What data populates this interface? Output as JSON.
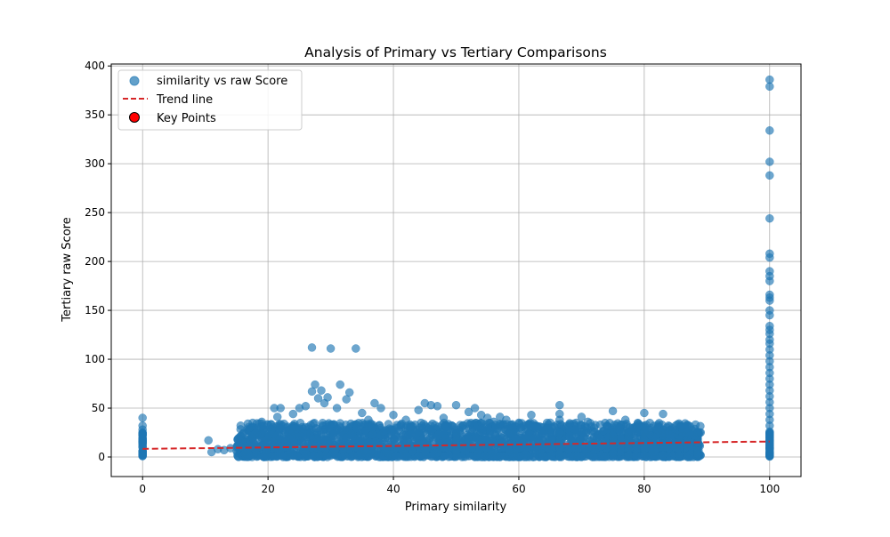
{
  "chart_data": {
    "type": "scatter",
    "title": "Analysis of Primary vs Tertiary Comparisons",
    "xlabel": "Primary similarity",
    "ylabel": "Tertiary raw Score",
    "xlim": [
      -5,
      105
    ],
    "ylim": [
      -20,
      402
    ],
    "xticks": [
      0,
      20,
      40,
      60,
      80,
      100
    ],
    "yticks": [
      0,
      50,
      100,
      150,
      200,
      250,
      300,
      350,
      400
    ],
    "grid": true,
    "legend_position": "top-left",
    "legend": [
      {
        "label": "similarity vs raw Score",
        "kind": "point",
        "color": "#1f77b4"
      },
      {
        "label": "Trend line",
        "kind": "dashed-line",
        "color": "#d62728"
      },
      {
        "label": "Key Points",
        "kind": "point",
        "color": "#ff0000"
      }
    ],
    "series": [
      {
        "name": "similarity vs raw Score",
        "kind": "scatter",
        "color": "#1f77b4",
        "points": [
          [
            0,
            40
          ],
          [
            0,
            32
          ],
          [
            0,
            28
          ],
          [
            0,
            22
          ],
          [
            0,
            18
          ],
          [
            0,
            14
          ],
          [
            0,
            10
          ],
          [
            0,
            6
          ],
          [
            0,
            2
          ],
          [
            10.5,
            17
          ],
          [
            11,
            5
          ],
          [
            12,
            8
          ],
          [
            13,
            7
          ],
          [
            14,
            9
          ],
          [
            15,
            6
          ],
          [
            15.5,
            10
          ],
          [
            16,
            24
          ],
          [
            17,
            12
          ],
          [
            18,
            24
          ],
          [
            19,
            36
          ],
          [
            20,
            15
          ],
          [
            21,
            50
          ],
          [
            21.5,
            41
          ],
          [
            22,
            50
          ],
          [
            23,
            30
          ],
          [
            24,
            44
          ],
          [
            25,
            50
          ],
          [
            26,
            52
          ],
          [
            27,
            67
          ],
          [
            27,
            112
          ],
          [
            27.5,
            74
          ],
          [
            28,
            60
          ],
          [
            28.5,
            68
          ],
          [
            29,
            55
          ],
          [
            29.5,
            61
          ],
          [
            30,
            111
          ],
          [
            31,
            50
          ],
          [
            31.5,
            74
          ],
          [
            32.5,
            59
          ],
          [
            33,
            66
          ],
          [
            34,
            111
          ],
          [
            35,
            45
          ],
          [
            36,
            38
          ],
          [
            37,
            55
          ],
          [
            38,
            50
          ],
          [
            40,
            43
          ],
          [
            42,
            38
          ],
          [
            44,
            48
          ],
          [
            45,
            55
          ],
          [
            46,
            53
          ],
          [
            47,
            52
          ],
          [
            48,
            40
          ],
          [
            50,
            53
          ],
          [
            52,
            46
          ],
          [
            53,
            50
          ],
          [
            54,
            43
          ],
          [
            55,
            40
          ],
          [
            56,
            36
          ],
          [
            57,
            41
          ],
          [
            58,
            38
          ],
          [
            60,
            35
          ],
          [
            62,
            43
          ],
          [
            63,
            30
          ],
          [
            64,
            27
          ],
          [
            65,
            35
          ],
          [
            66.5,
            53
          ],
          [
            66.5,
            44
          ],
          [
            66.5,
            38
          ],
          [
            68,
            30
          ],
          [
            69,
            28
          ],
          [
            70,
            41
          ],
          [
            71,
            36
          ],
          [
            72,
            30
          ],
          [
            73,
            33
          ],
          [
            75,
            47
          ],
          [
            76,
            30
          ],
          [
            77,
            38
          ],
          [
            78,
            26
          ],
          [
            80,
            45
          ],
          [
            80,
            32
          ],
          [
            81,
            22
          ],
          [
            82,
            28
          ],
          [
            83,
            44
          ],
          [
            84,
            23
          ],
          [
            85,
            32
          ],
          [
            86,
            25
          ],
          [
            87,
            24
          ],
          [
            88,
            22
          ],
          [
            89,
            25
          ],
          [
            100,
            386
          ],
          [
            100,
            379
          ],
          [
            100,
            334
          ],
          [
            100,
            302
          ],
          [
            100,
            288
          ],
          [
            100,
            244
          ],
          [
            100,
            208
          ],
          [
            100,
            204
          ],
          [
            100,
            190
          ],
          [
            100,
            185
          ],
          [
            100,
            180
          ],
          [
            100,
            166
          ],
          [
            100,
            163
          ],
          [
            100,
            160
          ],
          [
            100,
            150
          ],
          [
            100,
            145
          ],
          [
            100,
            134
          ],
          [
            100,
            130
          ],
          [
            100,
            126
          ],
          [
            100,
            120
          ],
          [
            100,
            116
          ],
          [
            100,
            110
          ],
          [
            100,
            104
          ],
          [
            100,
            98
          ],
          [
            100,
            92
          ],
          [
            100,
            86
          ],
          [
            100,
            80
          ],
          [
            100,
            74
          ],
          [
            100,
            68
          ],
          [
            100,
            62
          ],
          [
            100,
            56
          ],
          [
            100,
            50
          ],
          [
            100,
            44
          ],
          [
            100,
            38
          ],
          [
            100,
            32
          ],
          [
            100,
            26
          ],
          [
            100,
            20
          ],
          [
            100,
            14
          ],
          [
            100,
            8
          ],
          [
            100,
            3
          ]
        ],
        "dense_band": {
          "x_range": [
            15,
            89
          ],
          "y_range": [
            0,
            35
          ],
          "note_columns_x": [
            0,
            50,
            66.5,
            75,
            77.5,
            80,
            83,
            85.5,
            88.5,
            100
          ]
        }
      },
      {
        "name": "Trend line",
        "kind": "line",
        "color": "#d62728",
        "x": [
          0,
          100
        ],
        "y": [
          8.3,
          15.8
        ]
      }
    ]
  }
}
